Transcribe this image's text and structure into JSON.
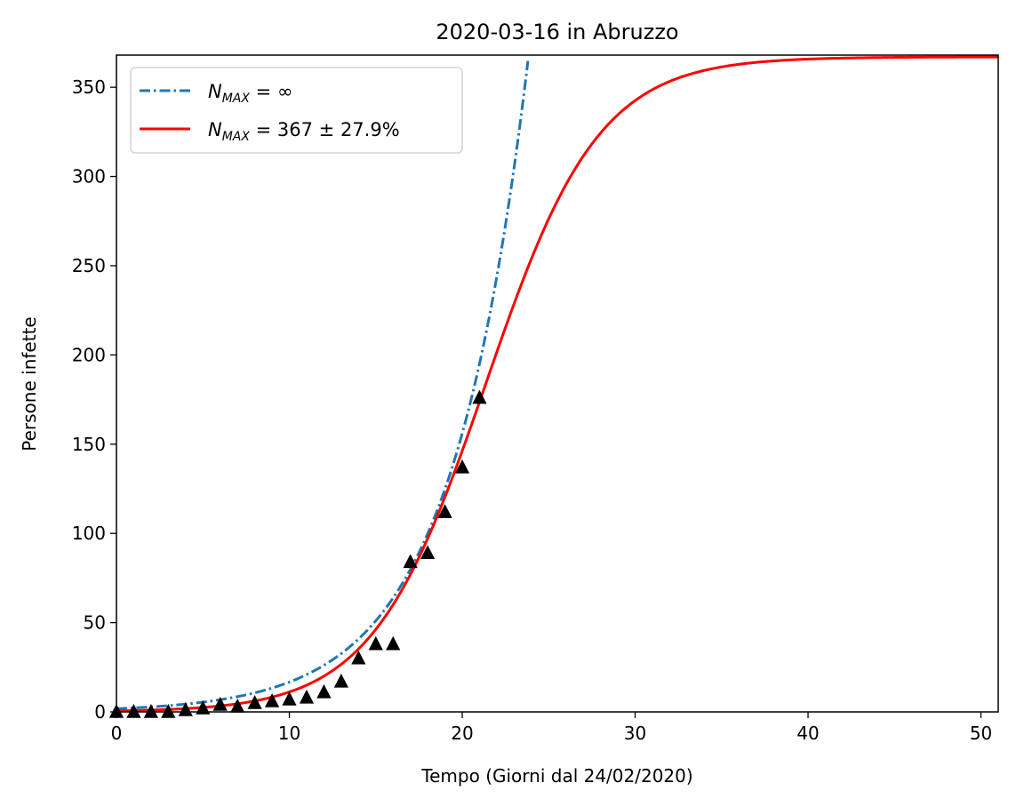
{
  "chart_data": {
    "type": "line",
    "title": "2020-03-16 in Abruzzo",
    "xlabel": "Tempo (Giorni dal 24/02/2020)",
    "ylabel": "Persone infette",
    "xlim": [
      0,
      51
    ],
    "ylim": [
      0,
      368
    ],
    "xticks": [
      0,
      10,
      20,
      30,
      40,
      50
    ],
    "yticks": [
      0,
      50,
      100,
      150,
      200,
      250,
      300,
      350
    ],
    "grid": false,
    "legend_position": "top-left",
    "series": [
      {
        "name_prefix": "N",
        "name_sub": "MAX",
        "name_rest": " = ∞",
        "style": "dashdot",
        "color": "#1f77b4",
        "model": "exponential",
        "params": {
          "a": 1.79,
          "b": 0.2234
        },
        "x_range": [
          0,
          23.8
        ]
      },
      {
        "name_prefix": "N",
        "name_sub": "MAX",
        "name_rest": " = 367 ± 27.9%",
        "style": "solid",
        "color": "#ff0000",
        "model": "logistic",
        "params": {
          "nmax": 367,
          "k": 0.305,
          "x0": 21.35
        },
        "x_range": [
          0,
          51
        ]
      }
    ],
    "points": {
      "marker": "triangle",
      "color": "#000000",
      "x": [
        0,
        1,
        2,
        3,
        4,
        5,
        6,
        7,
        8,
        9,
        10,
        11,
        12,
        13,
        14,
        15,
        16,
        17,
        18,
        19,
        20,
        21
      ],
      "y": [
        0,
        0,
        0,
        0,
        1,
        2,
        4,
        3,
        5,
        6,
        7,
        8,
        11,
        17,
        30,
        38,
        38,
        84,
        89,
        112,
        137,
        176
      ]
    }
  }
}
